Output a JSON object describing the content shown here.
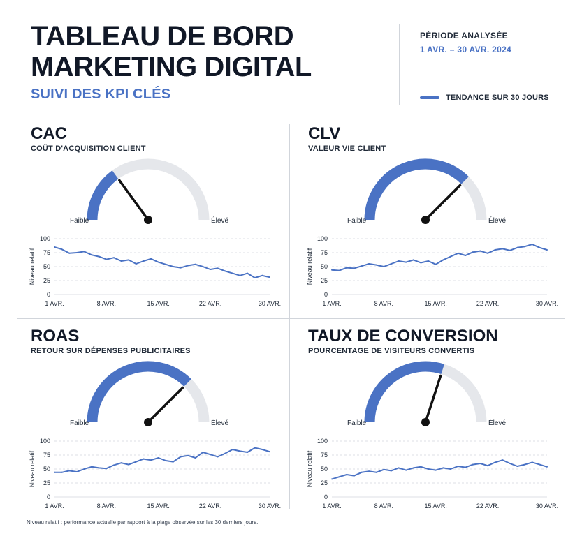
{
  "header": {
    "title_line1": "TABLEAU DE BORD",
    "title_line2": "MARKETING DIGITAL",
    "subtitle": "SUIVI DES KPI CLÉS",
    "period_label": "PÉRIODE ANALYSÉE",
    "period_value": "1 AVR. – 30 AVR. 2024",
    "legend_label": "TENDANCE SUR 30 JOURS"
  },
  "gauge_labels": {
    "low": "Faible",
    "high": "Élevé"
  },
  "colors": {
    "accent": "#4a72c4",
    "track": "#e5e7eb",
    "needle": "#111111",
    "grid": "#d1d5db"
  },
  "footnote": "Niveau relatif : performance actuelle par rapport à la plage observée sur les 30 derniers jours.",
  "panels": [
    {
      "title": "CAC",
      "subtitle": "COÛT D'ACQUISITION CLIENT"
    },
    {
      "title": "CLV",
      "subtitle": "VALEUR VIE CLIENT"
    },
    {
      "title": "ROAS",
      "subtitle": "RETOUR SUR DÉPENSES PUBLICITAIRES"
    },
    {
      "title": "TAUX DE CONVERSION",
      "subtitle": "POURCENTAGE DE VISITEURS CONVERTIS"
    }
  ],
  "chart_data": [
    {
      "type": "line",
      "title": "CAC",
      "gauge_level": 0.3,
      "ylabel": "Niveau relatif",
      "ylim": [
        0,
        100
      ],
      "yticks": [
        0,
        25,
        50,
        75,
        100
      ],
      "grid": true,
      "x_tick_labels": [
        "1 AVR.",
        "8 AVR.",
        "15 AVR.",
        "22 AVR.",
        "30 AVR."
      ],
      "x_tick_days": [
        1,
        8,
        15,
        22,
        30
      ],
      "x": [
        1,
        2,
        3,
        4,
        5,
        6,
        7,
        8,
        9,
        10,
        11,
        12,
        13,
        14,
        15,
        16,
        17,
        18,
        19,
        20,
        21,
        22,
        23,
        24,
        25,
        26,
        27,
        28,
        29,
        30
      ],
      "values": [
        85,
        81,
        74,
        75,
        77,
        71,
        68,
        63,
        66,
        60,
        62,
        55,
        60,
        64,
        58,
        54,
        50,
        48,
        52,
        54,
        50,
        45,
        47,
        42,
        38,
        34,
        38,
        30,
        34,
        31
      ]
    },
    {
      "type": "line",
      "title": "CLV",
      "gauge_level": 0.75,
      "ylabel": "Niveau relatif",
      "ylim": [
        0,
        100
      ],
      "yticks": [
        0,
        25,
        50,
        75,
        100
      ],
      "grid": true,
      "x_tick_labels": [
        "1 AVR.",
        "8 AVR.",
        "15 AVR.",
        "22 AVR.",
        "30 AVR."
      ],
      "x_tick_days": [
        1,
        8,
        15,
        22,
        30
      ],
      "x": [
        1,
        2,
        3,
        4,
        5,
        6,
        7,
        8,
        9,
        10,
        11,
        12,
        13,
        14,
        15,
        16,
        17,
        18,
        19,
        20,
        21,
        22,
        23,
        24,
        25,
        26,
        27,
        28,
        29,
        30
      ],
      "values": [
        44,
        43,
        48,
        47,
        51,
        55,
        53,
        50,
        55,
        60,
        58,
        62,
        57,
        60,
        54,
        62,
        68,
        74,
        70,
        76,
        78,
        74,
        80,
        82,
        79,
        84,
        86,
        90,
        84,
        80
      ]
    },
    {
      "type": "line",
      "title": "ROAS",
      "gauge_level": 0.75,
      "ylabel": "Niveau relatif",
      "ylim": [
        0,
        100
      ],
      "yticks": [
        0,
        25,
        50,
        75,
        100
      ],
      "grid": true,
      "x_tick_labels": [
        "1 AVR.",
        "8 AVR.",
        "15 AVR.",
        "22 AVR.",
        "30 AVR."
      ],
      "x_tick_days": [
        1,
        8,
        15,
        22,
        30
      ],
      "x": [
        1,
        2,
        3,
        4,
        5,
        6,
        7,
        8,
        9,
        10,
        11,
        12,
        13,
        14,
        15,
        16,
        17,
        18,
        19,
        20,
        21,
        22,
        23,
        24,
        25,
        26,
        27,
        28,
        29,
        30
      ],
      "values": [
        44,
        44,
        47,
        45,
        50,
        54,
        52,
        51,
        57,
        61,
        58,
        63,
        68,
        66,
        70,
        65,
        63,
        72,
        74,
        70,
        80,
        76,
        72,
        78,
        85,
        82,
        80,
        88,
        85,
        81
      ]
    },
    {
      "type": "line",
      "title": "TAUX DE CONVERSION",
      "gauge_level": 0.6,
      "ylabel": "Niveau relatif",
      "ylim": [
        0,
        100
      ],
      "yticks": [
        0,
        25,
        50,
        75,
        100
      ],
      "grid": true,
      "x_tick_labels": [
        "1 AVR.",
        "8 AVR.",
        "15 AVR.",
        "22 AVR.",
        "30 AVR."
      ],
      "x_tick_days": [
        1,
        8,
        15,
        22,
        30
      ],
      "x": [
        1,
        2,
        3,
        4,
        5,
        6,
        7,
        8,
        9,
        10,
        11,
        12,
        13,
        14,
        15,
        16,
        17,
        18,
        19,
        20,
        21,
        22,
        23,
        24,
        25,
        26,
        27,
        28,
        29,
        30
      ],
      "values": [
        32,
        36,
        40,
        38,
        44,
        46,
        44,
        49,
        47,
        52,
        48,
        52,
        54,
        50,
        48,
        52,
        50,
        55,
        53,
        58,
        60,
        56,
        62,
        66,
        60,
        55,
        58,
        62,
        58,
        54
      ]
    }
  ]
}
